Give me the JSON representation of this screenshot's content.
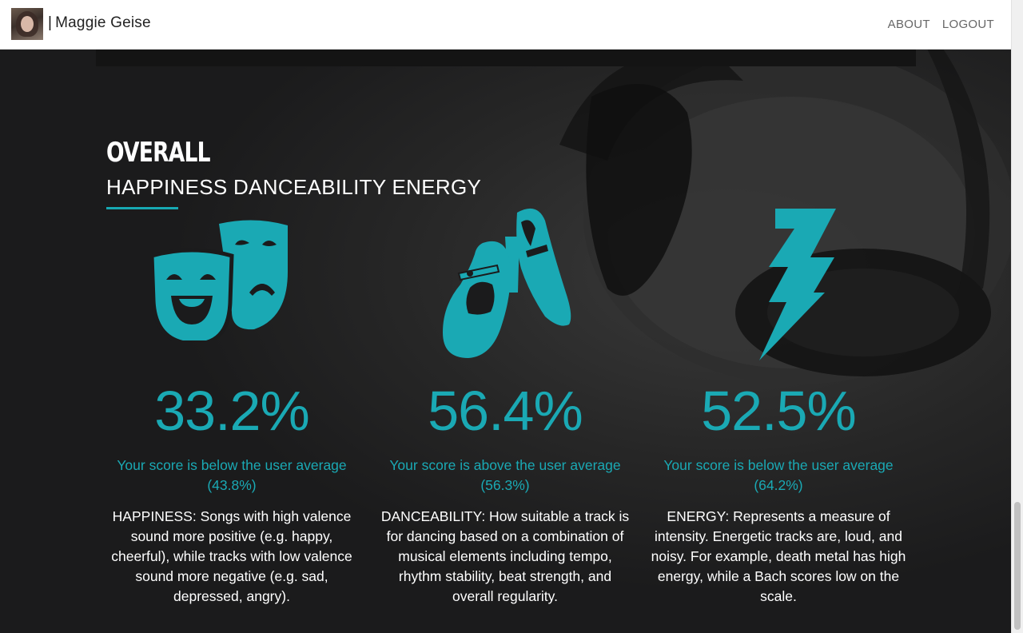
{
  "user": {
    "name": "Maggie Geise",
    "separator": "|"
  },
  "nav": {
    "about": "ABOUT",
    "logout": "LOGOUT"
  },
  "section": {
    "title": "OVERALL",
    "subtitle": "HAPPINESS DANCEABILITY ENERGY"
  },
  "colors": {
    "accent": "#17a9b3",
    "background": "#1b1b1c",
    "navbar": "#ffffff"
  },
  "stats": [
    {
      "icon": "theater-masks-icon",
      "percent": "33.2%",
      "comparison": "Your score is below the user average",
      "average": "(43.8%)",
      "description": "HAPPINESS: Songs with high valence sound more positive (e.g. happy, cheerful), while tracks with low valence sound more negative (e.g. sad, depressed, angry)."
    },
    {
      "icon": "dance-shoes-icon",
      "percent": "56.4%",
      "comparison": "Your score is above the user average",
      "average": "(56.3%)",
      "description": "DANCEABILITY: How suitable a track is for dancing based on a combination of musical elements including tempo, rhythm stability, beat strength, and overall regularity."
    },
    {
      "icon": "lightning-bolt-icon",
      "percent": "52.5%",
      "comparison": "Your score is below the user average",
      "average": "(64.2%)",
      "description": "ENERGY: Represents a measure of intensity. Energetic tracks are, loud, and noisy. For example, death metal has high energy, while a Bach scores low on the scale."
    }
  ]
}
